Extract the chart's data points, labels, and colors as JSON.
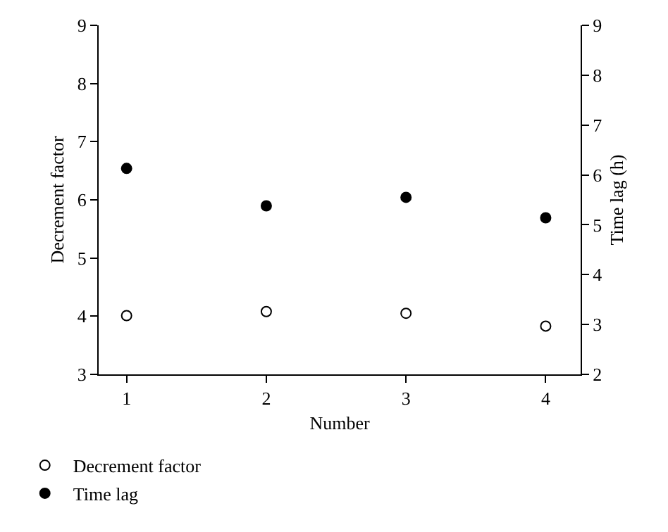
{
  "chart_data": {
    "type": "scatter",
    "xlabel": "Number",
    "ylabel": "Decrement factor",
    "y2label": "Time lag (h)",
    "x": [
      1,
      2,
      3,
      4
    ],
    "xlim": [
      0.8,
      4.25
    ],
    "xticks": [
      1,
      2,
      3,
      4
    ],
    "ylim": [
      3,
      9
    ],
    "yticks": [
      3,
      4,
      5,
      6,
      7,
      8,
      9
    ],
    "y2lim": [
      2,
      9
    ],
    "y2ticks": [
      2,
      3,
      4,
      5,
      6,
      7,
      8,
      9
    ],
    "series": [
      {
        "name": "Decrement factor",
        "color": "#000000",
        "marker": "circle-open",
        "values": [
          4.01,
          4.08,
          4.05,
          3.83
        ]
      },
      {
        "name": "Time lag",
        "color": "#000000",
        "marker": "circle",
        "axis": "y2",
        "values": [
          6.13,
          5.38,
          5.55,
          5.14
        ]
      }
    ],
    "grid": false,
    "legend": "bottom left"
  }
}
